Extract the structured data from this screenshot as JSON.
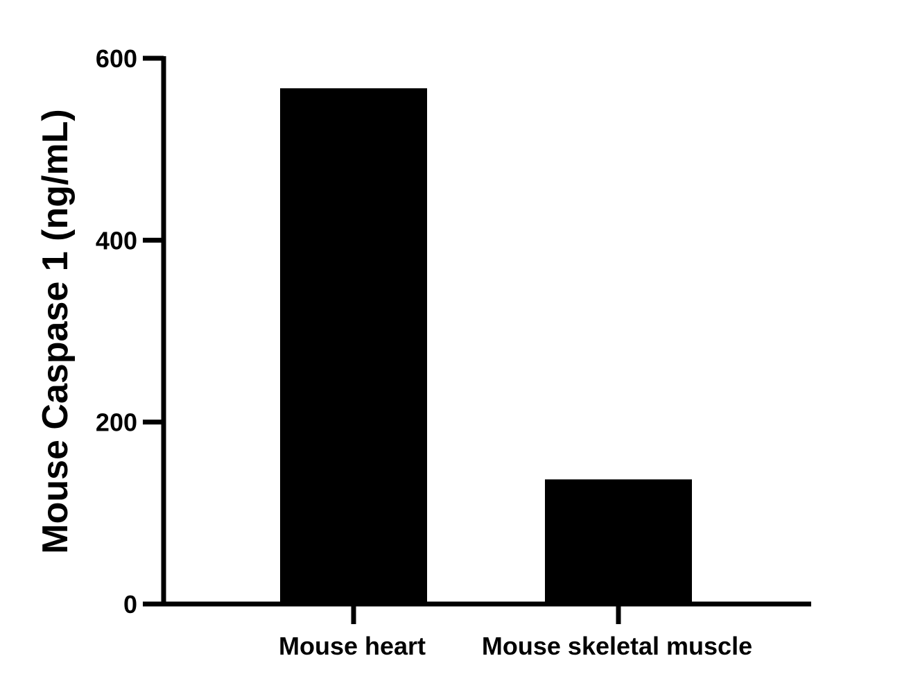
{
  "chart_data": {
    "type": "bar",
    "categories": [
      "Mouse heart",
      "Mouse skeletal muscle"
    ],
    "values": [
      567,
      137
    ],
    "ylabel": "Mouse Caspase 1 (ng/mL)",
    "xlabel": "",
    "ylim": [
      0,
      600
    ],
    "yticks": [
      0,
      200,
      400,
      600
    ],
    "grid": false,
    "legend": "none",
    "bar_color": "#000000",
    "axis_color": "#000000"
  }
}
